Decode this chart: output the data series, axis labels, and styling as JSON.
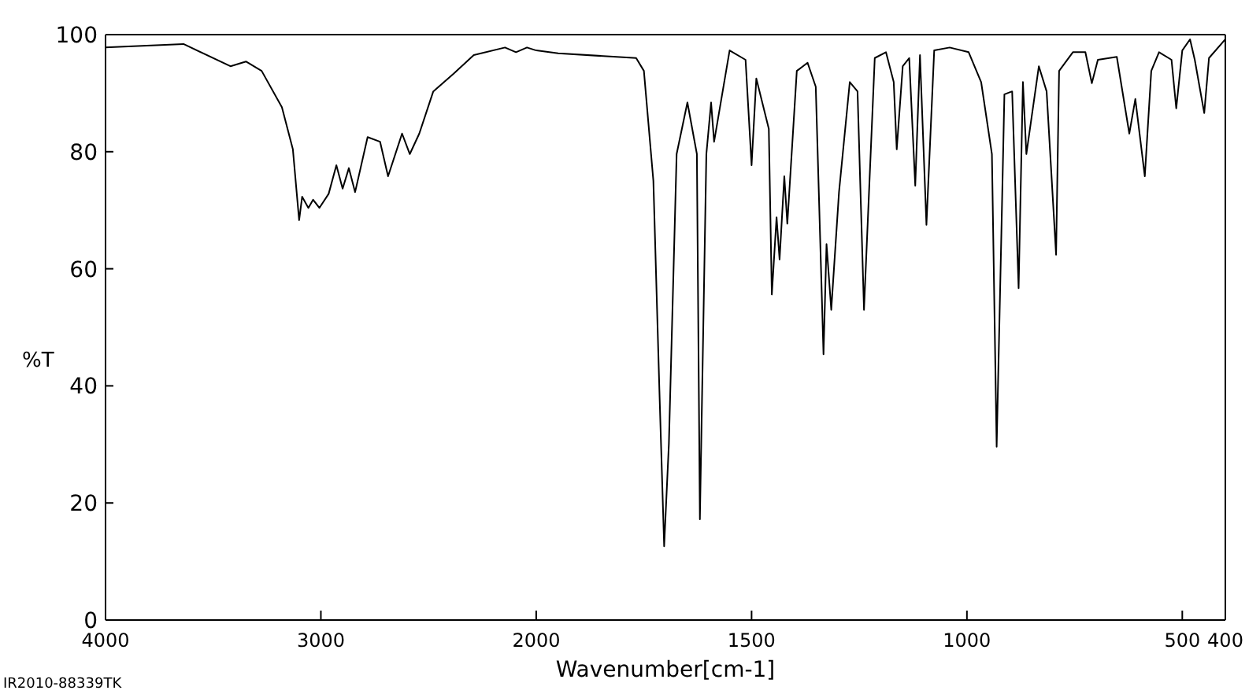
{
  "chart_data": [
    {
      "type": "line",
      "ylabel": "%T",
      "annotations": [
        "IR2010-88339TK"
      ],
      "xlim": [
        4000,
        2000
      ],
      "xticks": [
        4000,
        3000,
        {
          "value": 2000,
          "label": null
        }
      ],
      "ylim": [
        0,
        100
      ],
      "yticks": [
        0,
        20,
        40,
        60,
        80,
        100
      ],
      "grid": false,
      "series": [
        {
          "color": "#000000",
          "x": [
            4000,
            3638,
            3420,
            3348,
            3275,
            3181,
            3130,
            3101,
            3087,
            3058,
            3036,
            3007,
            2964,
            2928,
            2899,
            2870,
            2841,
            2783,
            2725,
            2688,
            2623,
            2587,
            2543,
            2478,
            2384,
            2290,
            2145,
            2094,
            2043,
            2000
          ],
          "values": [
            97.8,
            98.4,
            94.6,
            95.4,
            93.8,
            87.6,
            80.4,
            68.3,
            72.3,
            70.4,
            71.8,
            70.4,
            72.8,
            77.7,
            73.7,
            77.2,
            73.1,
            82.5,
            81.7,
            75.8,
            83.1,
            79.6,
            83.1,
            90.3,
            93.3,
            96.5,
            97.8,
            97,
            97.8,
            97.3
          ]
        }
      ]
    },
    {
      "type": "line",
      "xlabel": "Wavenumber[cm-1]",
      "xlim": [
        2000,
        400
      ],
      "xticks": [
        2000,
        1500,
        1000,
        500,
        400
      ],
      "ylim": [
        0,
        100
      ],
      "tick_labels": "x",
      "grid": false,
      "series": [
        {
          "color": "#000000",
          "x": [
            2000,
            1949,
            1768,
            1750,
            1728,
            1714,
            1703,
            1692,
            1674,
            1649,
            1627,
            1620,
            1605,
            1594,
            1587,
            1551,
            1514,
            1500,
            1489,
            1460,
            1453,
            1442,
            1435,
            1424,
            1417,
            1395,
            1370,
            1351,
            1333,
            1326,
            1315,
            1297,
            1272,
            1254,
            1239,
            1214,
            1188,
            1170,
            1163,
            1149,
            1134,
            1120,
            1109,
            1094,
            1076,
            1040,
            996,
            967,
            942,
            931,
            920,
            913,
            895,
            880,
            870,
            862,
            833,
            815,
            793,
            786,
            754,
            725,
            710,
            696,
            652,
            623,
            609,
            587,
            572,
            554,
            525,
            514,
            500,
            482,
            471,
            449,
            438,
            400
          ],
          "values": [
            97.3,
            96.8,
            96,
            93.8,
            75,
            39.2,
            12.6,
            30.1,
            79.6,
            88.4,
            79.6,
            17.2,
            79.6,
            88.4,
            81.7,
            97.3,
            95.7,
            77.7,
            92.5,
            83.9,
            55.6,
            68.8,
            61.6,
            75.8,
            67.7,
            93.8,
            95.2,
            91.1,
            45.4,
            64.2,
            53,
            73.1,
            91.9,
            90.3,
            53,
            96,
            97,
            91.9,
            80.4,
            94.6,
            96,
            74.2,
            96.5,
            67.5,
            97.3,
            97.8,
            97,
            91.9,
            79.6,
            29.6,
            66.1,
            89.8,
            90.3,
            56.7,
            91.9,
            79.6,
            94.6,
            90.3,
            62.4,
            93.8,
            97,
            97,
            91.7,
            95.7,
            96.2,
            83.1,
            89,
            75.8,
            93.8,
            97,
            95.7,
            87.4,
            97.3,
            99.2,
            95.7,
            86.6,
            96,
            99.2
          ]
        }
      ]
    }
  ]
}
